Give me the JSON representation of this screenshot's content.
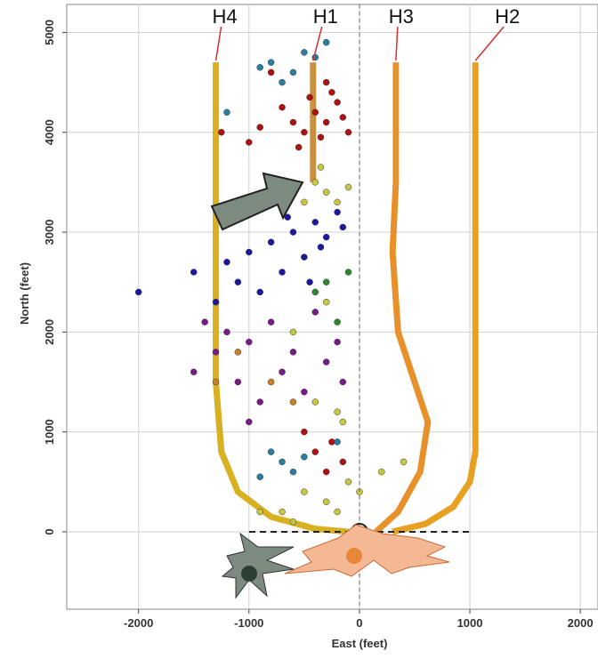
{
  "chart_data": {
    "type": "scatter",
    "x_label": "East (feet)",
    "y_label": "North (feet)",
    "xlim": [
      -2650,
      2160
    ],
    "ylim": [
      -775,
      5280
    ],
    "xticks": [
      -2000,
      -1000,
      0,
      1000,
      2000
    ],
    "yticks": [
      0,
      1000,
      2000,
      3000,
      4000,
      5000
    ],
    "grid": true,
    "series": [
      {
        "color": "#b01010",
        "x": [
          -400,
          -300,
          -200,
          -500,
          -350,
          -150,
          -250,
          -450,
          -600,
          -100,
          -700,
          -300,
          -550,
          -900,
          -1000,
          -400,
          -250,
          -150,
          -300,
          -500,
          -1250,
          -800
        ],
        "values": [
          4200,
          4100,
          4300,
          4000,
          3950,
          4150,
          4400,
          4350,
          4100,
          4000,
          4250,
          4500,
          3850,
          4050,
          3900,
          800,
          900,
          700,
          600,
          1000,
          4000,
          4600
        ]
      },
      {
        "color": "#1a1aa0",
        "x": [
          -1200,
          -1000,
          -800,
          -600,
          -400,
          -300,
          -200,
          -700,
          -1100,
          -900,
          -500,
          -350,
          -1300,
          -150,
          -650,
          -1500,
          -2000,
          -450
        ],
        "values": [
          2700,
          2800,
          2900,
          3000,
          3100,
          2950,
          3200,
          2600,
          2500,
          2400,
          2750,
          2850,
          2300,
          3050,
          3150,
          2600,
          2400,
          2500
        ]
      },
      {
        "color": "#2a7fa0",
        "x": [
          -800,
          -600,
          -500,
          -300,
          -700,
          -900,
          -400,
          -1200,
          -700,
          -600,
          -800,
          -900,
          -500,
          -200
        ],
        "values": [
          4700,
          4600,
          4800,
          4900,
          4500,
          4650,
          4750,
          4200,
          700,
          600,
          800,
          550,
          750,
          900
        ]
      },
      {
        "color": "#c8c840",
        "x": [
          -400,
          -300,
          -200,
          -100,
          -500,
          -350,
          -500,
          -300,
          -700,
          -100,
          200,
          400,
          -600,
          -200,
          0,
          -400,
          -200,
          -150,
          -900,
          -300,
          -600
        ],
        "values": [
          3500,
          3400,
          3300,
          3450,
          3300,
          3650,
          400,
          300,
          200,
          500,
          600,
          700,
          100,
          200,
          400,
          1300,
          1200,
          1100,
          200,
          2300,
          2000
        ]
      },
      {
        "color": "#7a1a8a",
        "x": [
          -1200,
          -1000,
          -800,
          -600,
          -400,
          -300,
          -1100,
          -900,
          -700,
          -500,
          -1300,
          -1500,
          -200,
          -1000,
          -150,
          -1400
        ],
        "values": [
          2000,
          1900,
          2100,
          1800,
          2200,
          1700,
          1500,
          1300,
          1600,
          1400,
          1800,
          1600,
          1900,
          1100,
          1500,
          2100
        ]
      },
      {
        "color": "#2a8a2a",
        "x": [
          -300,
          -100,
          -200,
          -400
        ],
        "values": [
          2500,
          2600,
          2100,
          2400
        ]
      },
      {
        "color": "#c8802a",
        "x": [
          -1100,
          -800,
          -600,
          -1300
        ],
        "values": [
          1800,
          1500,
          1300,
          1500
        ]
      }
    ],
    "wells": [
      {
        "name": "H4",
        "color": "#d8b020",
        "x": [
          -1300,
          -1300,
          -1300,
          -1250,
          -1100,
          -800,
          -400,
          -100
        ],
        "values": [
          4700,
          3000,
          1500,
          800,
          400,
          150,
          30,
          0
        ]
      },
      {
        "name": "H1",
        "color": "#c89040",
        "x": [
          -420,
          -420
        ],
        "values": [
          4700,
          3500
        ]
      },
      {
        "name": "H3",
        "color": "#e8902a",
        "x": [
          330,
          330,
          300,
          350,
          500,
          620,
          550,
          350,
          150
        ],
        "values": [
          4700,
          3500,
          2800,
          2000,
          1500,
          1100,
          600,
          200,
          0
        ]
      },
      {
        "name": "H2",
        "color": "#e8a020",
        "x": [
          1050,
          1050,
          1000,
          850,
          600,
          300
        ],
        "values": [
          4700,
          800,
          500,
          250,
          80,
          0
        ]
      }
    ]
  }
}
